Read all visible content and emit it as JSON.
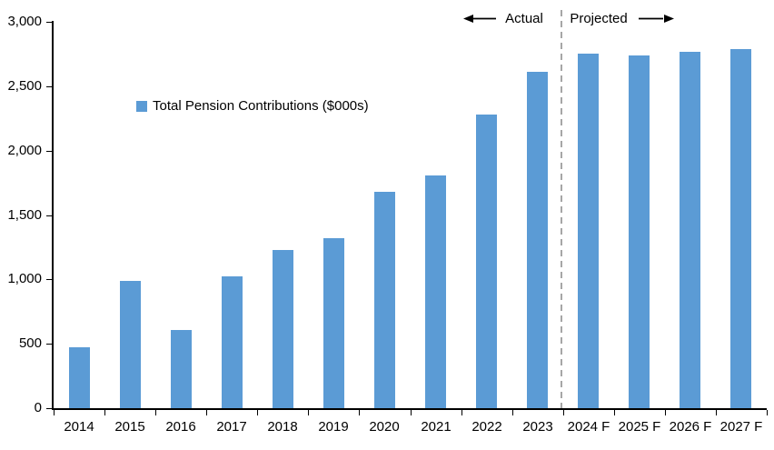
{
  "chart_data": {
    "type": "bar",
    "title": "",
    "legend": "Total Pension Contributions ($000s)",
    "categories": [
      "2014",
      "2015",
      "2016",
      "2017",
      "2018",
      "2019",
      "2020",
      "2021",
      "2022",
      "2023",
      "2024 F",
      "2025 F",
      "2026 F",
      "2027 F"
    ],
    "values": [
      470,
      990,
      610,
      1020,
      1230,
      1320,
      1680,
      1810,
      2280,
      2610,
      2750,
      2740,
      2765,
      2790
    ],
    "xlabel": "",
    "ylabel": "",
    "ylim": [
      0,
      3000
    ],
    "yticks": [
      0,
      500,
      1000,
      1500,
      2000,
      2500,
      3000
    ],
    "ytick_labels": [
      "0",
      "500",
      "1,000",
      "1,500",
      "2,000",
      "2,500",
      "3,000"
    ],
    "grid": false,
    "legend_position": "inside-top-left",
    "annotations": {
      "actual_label": "Actual",
      "projected_label": "Projected",
      "divider_between": [
        "2023",
        "2024 F"
      ]
    }
  },
  "colors": {
    "bar": "#5B9BD5",
    "divider": "#A6A6A6",
    "axis": "#000000",
    "text": "#000000",
    "background": "#FFFFFF"
  }
}
